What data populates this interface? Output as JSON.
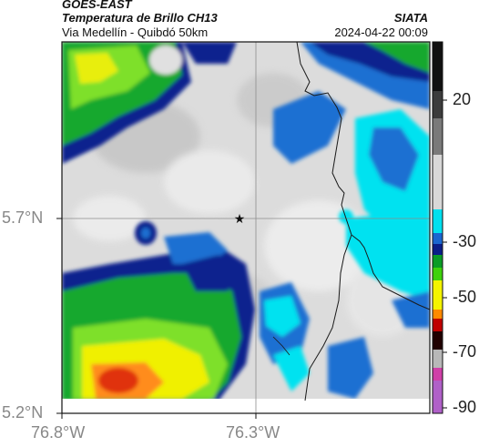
{
  "header": {
    "source": "GOES-EAST",
    "product": "Temperatura de Brillo CH13",
    "route": "Via Medellín - Quibdó 50km",
    "agency": "SIATA",
    "datetime": "2024-04-22 00:09"
  },
  "axes": {
    "lat_ticks": [
      "5.7°N",
      "5.2°N"
    ],
    "lon_ticks": [
      "76.8°W",
      "76.3°W"
    ]
  },
  "colorbar": {
    "ticks": [
      "20",
      "-30",
      "-50",
      "-70",
      "-90"
    ],
    "colors": [
      "#111111",
      "#7a7a7a",
      "#d8d8d8",
      "#00e0ef",
      "#1a66cf",
      "#0a1e88",
      "#0a9c26",
      "#3ed20c",
      "#f4f400",
      "#ff8a00",
      "#c00000",
      "#200000",
      "#b8b8b8",
      "#b060c8"
    ]
  },
  "map": {
    "marker": "star-marker",
    "palette": {
      "cold_white": "#e6e6e6",
      "light_gray": "#c8c8c8",
      "cyan": "#00e2f0",
      "blue": "#1d6fd2",
      "navy": "#0b238e",
      "green": "#12a82f",
      "lime": "#7ee02a",
      "yellow": "#f0f000",
      "orange": "#ff8c1a",
      "red": "#e03010",
      "border": "#1a1a1a",
      "grid": "#9a9a9a"
    }
  }
}
